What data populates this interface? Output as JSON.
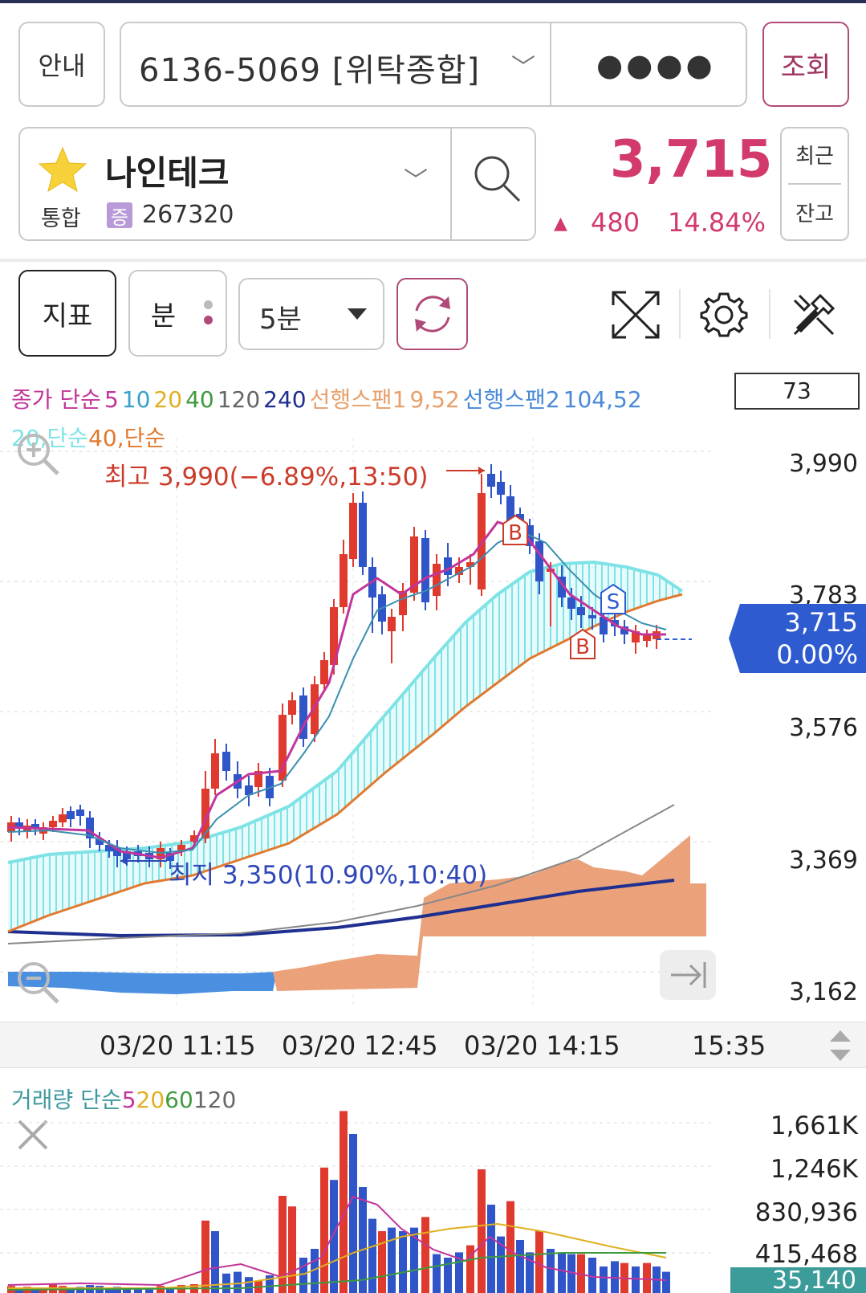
{
  "header": {
    "guide_label": "안내",
    "account_no": "6136-5069 [위탁종합]",
    "password_mask": "●●●●",
    "query_label": "조회"
  },
  "stock": {
    "name": "나인테크",
    "market": "통합",
    "badge": "증",
    "code": "267320",
    "price": "3,715",
    "change_arrow": "▲",
    "change": "480",
    "change_pct": "14.84%",
    "recent_label": "최근",
    "balance_label": "잔고"
  },
  "toolbar": {
    "indicator_label": "지표",
    "minute_label": "분",
    "interval_value": "5분",
    "icons": [
      "fullscreen-icon",
      "gear-icon",
      "tools-icon",
      "refresh-icon"
    ]
  },
  "indicators": {
    "line1": [
      {
        "text": "종가 단순",
        "color": "#c2359a"
      },
      {
        "text": "5",
        "color": "#c2359a"
      },
      {
        "text": "10",
        "color": "#3aa0c8"
      },
      {
        "text": "20",
        "color": "#e0b020"
      },
      {
        "text": "40",
        "color": "#3f9a3f"
      },
      {
        "text": "120",
        "color": "#666666"
      },
      {
        "text": "240",
        "color": "#1f2f8f"
      },
      {
        "text": "선행스팬1",
        "color": "#e8a06a"
      },
      {
        "text": "9,52",
        "color": "#e8a06a"
      },
      {
        "text": "선행스팬2",
        "color": "#4a8ad8"
      },
      {
        "text": "104,52",
        "color": "#4a8ad8"
      }
    ],
    "line2": [
      {
        "text": "20,단순",
        "color": "#7fe3e6"
      },
      {
        "text": "40,단순",
        "color": "#e07a30"
      }
    ],
    "box_value": "73"
  },
  "price_chart": {
    "y_labels": [
      "3,990",
      "3,783",
      "3,576",
      "3,369",
      "3,162"
    ],
    "current_price": "3,715",
    "current_pct": "0.00%",
    "high_label": "최고 3,990(−6.89%,13:50)",
    "low_label": "최지 3,350(10.90%,10:40)",
    "signals": [
      "B",
      "S",
      "B"
    ]
  },
  "time_axis": {
    "labels": [
      "03/20 11:15",
      "03/20 12:45",
      "03/20 14:15",
      "15:35"
    ]
  },
  "volume": {
    "legend": [
      {
        "text": "거래량 단순",
        "color": "#3f9aa0"
      },
      {
        "text": "5",
        "color": "#c2359a"
      },
      {
        "text": "20",
        "color": "#e0b020"
      },
      {
        "text": "60",
        "color": "#3f9a3f"
      },
      {
        "text": "120",
        "color": "#666666"
      }
    ],
    "y_labels": [
      "1,661K",
      "1,246K",
      "830,936",
      "415,468"
    ],
    "current_volume": "35,140"
  },
  "colors": {
    "up": "#d23a6b",
    "candle_up": "#e03a2f",
    "candle_down": "#2f55c8",
    "accent": "#b04a78",
    "cloud": "#eba27a"
  }
}
